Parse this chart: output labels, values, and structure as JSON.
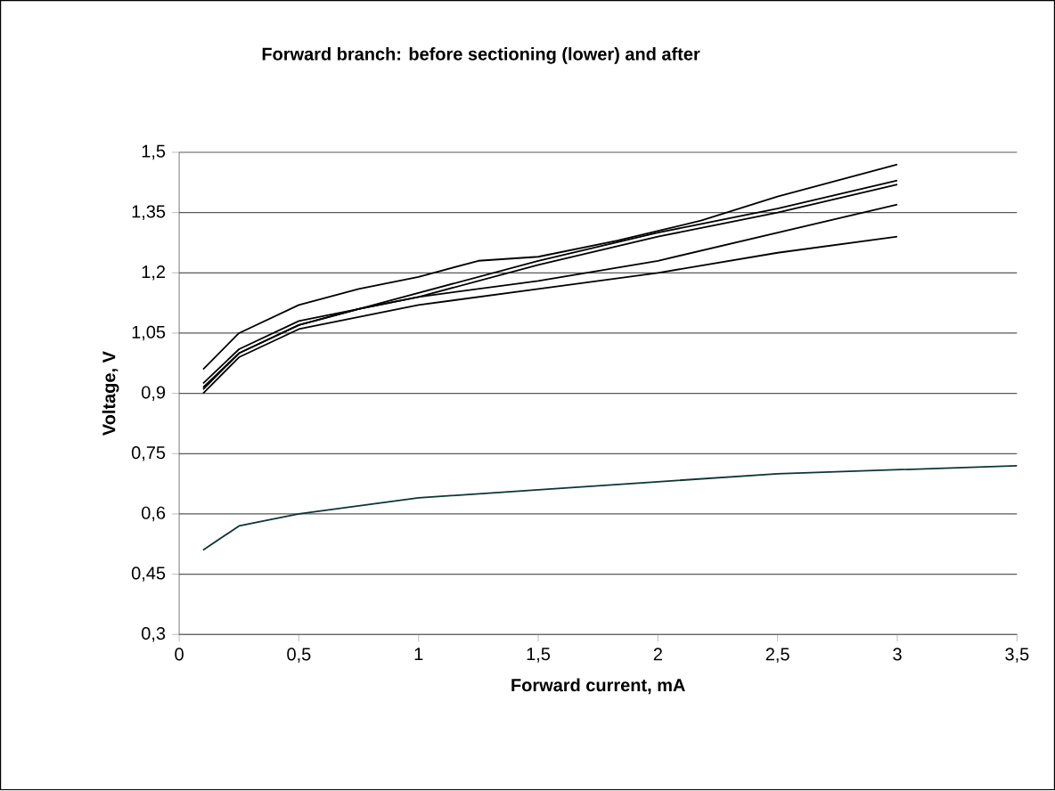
{
  "chart_data": {
    "type": "line",
    "title": "Forward branch: before sectioning (lower) and after",
    "xlabel": "Forward current, mA",
    "ylabel": "Voltage, V",
    "xlim": [
      0,
      3.5
    ],
    "xticks": [
      0,
      {
        "value": 0.5,
        "label": "0,5"
      },
      1,
      {
        "value": 1.5,
        "label": "1,5"
      },
      2,
      {
        "value": 2.5,
        "label": "2,5"
      },
      3,
      {
        "value": 3.5,
        "label": "3,5"
      }
    ],
    "ylim": [
      0.3,
      1.5
    ],
    "yticks": [
      {
        "value": 0.3,
        "label": "0,3"
      },
      {
        "value": 0.45,
        "label": "0,45"
      },
      {
        "value": 0.6,
        "label": "0,6"
      },
      {
        "value": 0.75,
        "label": "0,75"
      },
      {
        "value": 0.9,
        "label": "0,9"
      },
      {
        "value": 1.05,
        "label": "1,05"
      },
      {
        "value": 1.2,
        "label": "1,2"
      },
      {
        "value": 1.35,
        "label": "1,35"
      },
      {
        "value": 1.5,
        "label": "1,5"
      }
    ],
    "grid": "y",
    "marker": "none",
    "line_style": "solid",
    "series": [
      {
        "color": "#000000",
        "x": [
          0.1,
          0.25,
          0.5,
          0.75,
          1.0,
          1.25,
          1.5,
          1.83,
          2.18,
          2.5,
          3.0
        ],
        "values": [
          0.96,
          1.05,
          1.12,
          1.16,
          1.19,
          1.23,
          1.24,
          1.28,
          1.33,
          1.39,
          1.47
        ]
      },
      {
        "color": "#000000",
        "x": [
          0.1,
          0.25,
          0.5,
          0.75,
          1.0,
          1.5,
          2.0,
          2.5,
          3.0
        ],
        "values": [
          0.925,
          1.01,
          1.08,
          1.11,
          1.15,
          1.23,
          1.3,
          1.36,
          1.43
        ]
      },
      {
        "color": "#000000",
        "x": [
          0.1,
          0.25,
          0.5,
          0.75,
          1.0,
          1.5,
          2.0,
          2.5,
          3.0
        ],
        "values": [
          0.915,
          1.0,
          1.07,
          1.11,
          1.14,
          1.22,
          1.29,
          1.35,
          1.42
        ]
      },
      {
        "color": "#000000",
        "x": [
          0.1,
          0.25,
          0.5,
          0.75,
          1.0,
          1.5,
          2.0,
          2.5,
          3.0
        ],
        "values": [
          0.91,
          1.0,
          1.07,
          1.11,
          1.14,
          1.18,
          1.23,
          1.3,
          1.37
        ]
      },
      {
        "color": "#000000",
        "x": [
          0.1,
          0.25,
          0.5,
          0.75,
          1.0,
          1.5,
          2.0,
          2.5,
          3.0
        ],
        "values": [
          0.9,
          0.99,
          1.06,
          1.09,
          1.12,
          1.16,
          1.2,
          1.25,
          1.29
        ]
      },
      {
        "color": "#0d3535",
        "x": [
          0.1,
          0.25,
          0.5,
          0.75,
          1.0,
          1.5,
          2.0,
          2.5,
          3.0,
          3.5
        ],
        "values": [
          0.51,
          0.57,
          0.6,
          0.62,
          0.64,
          0.66,
          0.68,
          0.7,
          0.71,
          0.72
        ]
      }
    ]
  }
}
